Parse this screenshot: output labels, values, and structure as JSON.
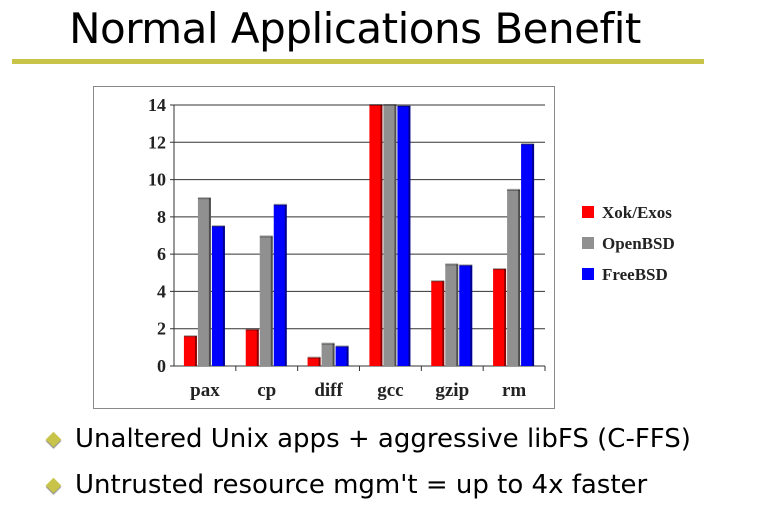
{
  "title": "Normal Applications Benefit",
  "bullets": [
    "Unaltered Unix apps + aggressive libFS (C-FFS)",
    "Untrusted resource mgm't = up to 4x faster"
  ],
  "colors": {
    "accent": "#c8c44a"
  },
  "chart_data": {
    "type": "bar",
    "categories": [
      "pax",
      "cp",
      "diff",
      "gcc",
      "gzip",
      "rm"
    ],
    "series": [
      {
        "name": "Xok/Exos",
        "color": "#ff0000",
        "values": [
          1.6,
          1.95,
          0.45,
          14,
          4.55,
          5.2
        ]
      },
      {
        "name": "OpenBSD",
        "color": "#909090",
        "values": [
          9.0,
          6.95,
          1.2,
          14,
          5.45,
          9.45
        ]
      },
      {
        "name": "FreeBSD",
        "color": "#0000ff",
        "values": [
          7.5,
          8.65,
          1.05,
          13.95,
          5.4,
          11.9
        ]
      }
    ],
    "yticks": [
      0,
      2,
      4,
      6,
      8,
      10,
      12,
      14
    ],
    "ylim": [
      0,
      14
    ],
    "grid": true,
    "legend": "right"
  }
}
